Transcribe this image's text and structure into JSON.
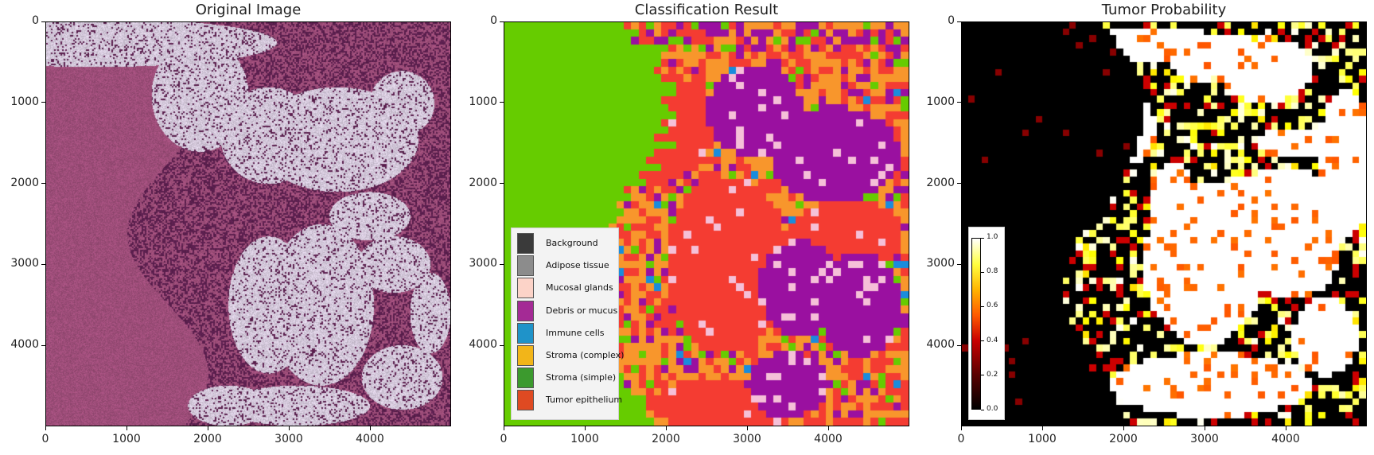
{
  "chart_data": [
    {
      "type": "heatmap",
      "title": "Original Image",
      "xlim": [
        0,
        5000
      ],
      "ylim": [
        5000,
        0
      ],
      "xticks": [
        "0",
        "1000",
        "2000",
        "3000",
        "4000"
      ],
      "yticks": [
        "0",
        "1000",
        "2000",
        "3000",
        "4000"
      ],
      "content": "H&E stained histology tissue image",
      "colors": {
        "stroma": "#a14f7c",
        "epithelium": "#5d2050",
        "mucus": "#d9cde0",
        "background": "#ffffff"
      }
    },
    {
      "type": "heatmap",
      "title": "Classification Result",
      "xlim": [
        0,
        5000
      ],
      "ylim": [
        5000,
        0
      ],
      "xticks": [
        "0",
        "1000",
        "2000",
        "3000",
        "4000"
      ],
      "yticks": [
        "0",
        "1000",
        "2000",
        "3000",
        "4000"
      ],
      "legend_position": "lower-left",
      "legend": [
        {
          "label": "Background",
          "color": "#3a3a3a"
        },
        {
          "label": "Adipose tissue",
          "color": "#8c8c8c"
        },
        {
          "label": "Mucosal glands",
          "color": "#fcd3c8"
        },
        {
          "label": "Debris or mucus",
          "color": "#a42a95"
        },
        {
          "label": "Immune cells",
          "color": "#1f93c9"
        },
        {
          "label": "Stroma (complex)",
          "color": "#f2b519"
        },
        {
          "label": "Stroma (simple)",
          "color": "#3c9a2e"
        },
        {
          "label": "Tumor epithelium",
          "color": "#df4a22"
        }
      ],
      "map_colors": {
        "stroma_simple": "#66cc00",
        "tumor": "#f43c32",
        "debris": "#9a10a0",
        "stroma_complex": "#f8962c",
        "immune": "#1a8cdc",
        "mucosal": "#f5c0d8",
        "adipose": "#999999"
      }
    },
    {
      "type": "heatmap",
      "title": "Tumor Probability",
      "xlim": [
        0,
        5000
      ],
      "ylim": [
        5000,
        0
      ],
      "xticks": [
        "0",
        "1000",
        "2000",
        "3000",
        "4000"
      ],
      "yticks": [
        "0",
        "1000",
        "2000",
        "3000",
        "4000"
      ],
      "colormap": "hot",
      "colorbar": {
        "min": 0.0,
        "max": 1.0,
        "ticks": [
          "0.0",
          "0.2",
          "0.4",
          "0.6",
          "0.8",
          "1.0"
        ]
      }
    }
  ]
}
